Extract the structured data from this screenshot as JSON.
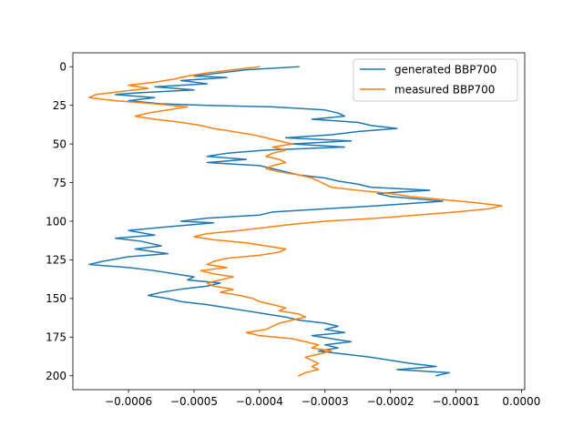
{
  "chart_data": {
    "type": "line",
    "title": "",
    "xlabel": "",
    "ylabel": "",
    "xlim": [
      -0.000685,
      5e-06
    ],
    "ylim": [
      209,
      -9
    ],
    "y_inverted": true,
    "grid": false,
    "legend_position": "top-right",
    "x_ticks": [
      -0.0006,
      -0.0005,
      -0.0004,
      -0.0003,
      -0.0002,
      -0.0001,
      0.0
    ],
    "x_tick_labels": [
      "−0.0006",
      "−0.0005",
      "−0.0004",
      "−0.0003",
      "−0.0002",
      "−0.0001",
      "0.0000"
    ],
    "y_ticks": [
      0,
      25,
      50,
      75,
      100,
      125,
      150,
      175,
      200
    ],
    "y_tick_labels": [
      "0",
      "25",
      "50",
      "75",
      "100",
      "125",
      "150",
      "175",
      "200"
    ],
    "series": [
      {
        "name": "generated BBP700",
        "color": "#1f77b4",
        "points": [
          [
            -0.00034,
            0
          ],
          [
            -0.00042,
            2
          ],
          [
            -0.00046,
            4
          ],
          [
            -0.0005,
            6
          ],
          [
            -0.00045,
            7
          ],
          [
            -0.00052,
            9
          ],
          [
            -0.00048,
            11
          ],
          [
            -0.00056,
            13
          ],
          [
            -0.0005,
            15
          ],
          [
            -0.00059,
            17
          ],
          [
            -0.00062,
            18
          ],
          [
            -0.00056,
            20
          ],
          [
            -0.0006,
            22
          ],
          [
            -0.00055,
            24
          ],
          [
            -0.00048,
            25
          ],
          [
            -0.00038,
            26
          ],
          [
            -0.0003,
            28
          ],
          [
            -0.00028,
            30
          ],
          [
            -0.00027,
            32
          ],
          [
            -0.00032,
            34
          ],
          [
            -0.00025,
            36
          ],
          [
            -0.00023,
            38
          ],
          [
            -0.00019,
            40
          ],
          [
            -0.00025,
            42
          ],
          [
            -0.00029,
            44
          ],
          [
            -0.00036,
            46
          ],
          [
            -0.00026,
            48
          ],
          [
            -0.00035,
            50
          ],
          [
            -0.00027,
            52
          ],
          [
            -0.00039,
            54
          ],
          [
            -0.00045,
            56
          ],
          [
            -0.00048,
            58
          ],
          [
            -0.00042,
            60
          ],
          [
            -0.00048,
            62
          ],
          [
            -0.0004,
            64
          ],
          [
            -0.00038,
            66
          ],
          [
            -0.00036,
            68
          ],
          [
            -0.00034,
            70
          ],
          [
            -0.0003,
            72
          ],
          [
            -0.00028,
            74
          ],
          [
            -0.00025,
            76
          ],
          [
            -0.00023,
            78
          ],
          [
            -0.00014,
            80
          ],
          [
            -0.00022,
            82
          ],
          [
            -0.0002,
            84
          ],
          [
            -0.00012,
            87
          ],
          [
            -0.00022,
            90
          ],
          [
            -0.0003,
            92
          ],
          [
            -0.00038,
            94
          ],
          [
            -0.0004,
            96
          ],
          [
            -0.00048,
            98
          ],
          [
            -0.00052,
            100
          ],
          [
            -0.00047,
            101
          ],
          [
            -0.00055,
            104
          ],
          [
            -0.0006,
            106
          ],
          [
            -0.00056,
            109
          ],
          [
            -0.00062,
            111
          ],
          [
            -0.00058,
            113
          ],
          [
            -0.00055,
            116
          ],
          [
            -0.00059,
            118
          ],
          [
            -0.00054,
            121
          ],
          [
            -0.0006,
            123
          ],
          [
            -0.00064,
            126
          ],
          [
            -0.00066,
            128
          ],
          [
            -0.0006,
            130
          ],
          [
            -0.00056,
            132
          ],
          [
            -0.00053,
            134
          ],
          [
            -0.0005,
            136
          ],
          [
            -0.00051,
            138
          ],
          [
            -0.00046,
            140
          ],
          [
            -0.00048,
            142
          ],
          [
            -0.00052,
            144
          ],
          [
            -0.00055,
            146
          ],
          [
            -0.00057,
            148
          ],
          [
            -0.00054,
            150
          ],
          [
            -0.00052,
            152
          ],
          [
            -0.00048,
            154
          ],
          [
            -0.00045,
            156
          ],
          [
            -0.00042,
            158
          ],
          [
            -0.00039,
            160
          ],
          [
            -0.00036,
            162
          ],
          [
            -0.00034,
            164
          ],
          [
            -0.0003,
            166
          ],
          [
            -0.00028,
            168
          ],
          [
            -0.0003,
            170
          ],
          [
            -0.00027,
            172
          ],
          [
            -0.00032,
            174
          ],
          [
            -0.00029,
            176
          ],
          [
            -0.00026,
            178
          ],
          [
            -0.0003,
            180
          ],
          [
            -0.00028,
            182
          ],
          [
            -0.00031,
            184
          ],
          [
            -0.00027,
            186
          ],
          [
            -0.00023,
            188
          ],
          [
            -0.0002,
            190
          ],
          [
            -0.00017,
            192
          ],
          [
            -0.00013,
            194
          ],
          [
            -0.00019,
            196
          ],
          [
            -0.00011,
            198
          ],
          [
            -0.00013,
            200
          ]
        ]
      },
      {
        "name": "measured BBP700",
        "color": "#ff7f0e",
        "points": [
          [
            -0.0004,
            0
          ],
          [
            -0.00044,
            2
          ],
          [
            -0.00048,
            4
          ],
          [
            -0.00051,
            6
          ],
          [
            -0.00053,
            8
          ],
          [
            -0.00056,
            10
          ],
          [
            -0.0006,
            12
          ],
          [
            -0.00057,
            14
          ],
          [
            -0.00061,
            16
          ],
          [
            -0.00065,
            18
          ],
          [
            -0.00066,
            20
          ],
          [
            -0.00062,
            22
          ],
          [
            -0.00056,
            24
          ],
          [
            -0.00051,
            26
          ],
          [
            -0.00054,
            28
          ],
          [
            -0.00057,
            30
          ],
          [
            -0.00059,
            32
          ],
          [
            -0.00056,
            34
          ],
          [
            -0.00052,
            36
          ],
          [
            -0.00049,
            38
          ],
          [
            -0.00047,
            40
          ],
          [
            -0.00044,
            42
          ],
          [
            -0.00041,
            44
          ],
          [
            -0.00039,
            46
          ],
          [
            -0.00037,
            48
          ],
          [
            -0.00035,
            50
          ],
          [
            -0.00038,
            52
          ],
          [
            -0.00036,
            54
          ],
          [
            -0.00038,
            56
          ],
          [
            -0.00039,
            58
          ],
          [
            -0.00037,
            60
          ],
          [
            -0.00036,
            62
          ],
          [
            -0.00038,
            64
          ],
          [
            -0.00039,
            66
          ],
          [
            -0.00037,
            68
          ],
          [
            -0.00034,
            70
          ],
          [
            -0.00032,
            72
          ],
          [
            -0.00031,
            74
          ],
          [
            -0.0003,
            76
          ],
          [
            -0.00029,
            78
          ],
          [
            -0.00025,
            80
          ],
          [
            -0.0002,
            82
          ],
          [
            -0.00017,
            84
          ],
          [
            -0.00012,
            86
          ],
          [
            -7e-05,
            88
          ],
          [
            -3e-05,
            90
          ],
          [
            -5e-05,
            92
          ],
          [
            -0.0001,
            94
          ],
          [
            -0.00016,
            96
          ],
          [
            -0.00022,
            98
          ],
          [
            -0.0003,
            100
          ],
          [
            -0.00035,
            102
          ],
          [
            -0.00039,
            104
          ],
          [
            -0.00043,
            106
          ],
          [
            -0.00048,
            108
          ],
          [
            -0.0005,
            110
          ],
          [
            -0.00047,
            112
          ],
          [
            -0.00042,
            114
          ],
          [
            -0.00039,
            116
          ],
          [
            -0.00036,
            118
          ],
          [
            -0.00037,
            120
          ],
          [
            -0.0004,
            122
          ],
          [
            -0.00045,
            124
          ],
          [
            -0.00047,
            126
          ],
          [
            -0.00048,
            128
          ],
          [
            -0.00045,
            130
          ],
          [
            -0.00049,
            132
          ],
          [
            -0.00047,
            134
          ],
          [
            -0.00044,
            136
          ],
          [
            -0.00046,
            138
          ],
          [
            -0.00048,
            140
          ],
          [
            -0.00047,
            142
          ],
          [
            -0.00044,
            144
          ],
          [
            -0.00046,
            146
          ],
          [
            -0.00043,
            148
          ],
          [
            -0.00041,
            150
          ],
          [
            -0.0004,
            152
          ],
          [
            -0.00038,
            154
          ],
          [
            -0.00036,
            156
          ],
          [
            -0.00037,
            158
          ],
          [
            -0.00034,
            160
          ],
          [
            -0.00033,
            162
          ],
          [
            -0.00035,
            164
          ],
          [
            -0.00037,
            166
          ],
          [
            -0.00038,
            168
          ],
          [
            -0.00039,
            170
          ],
          [
            -0.00042,
            172
          ],
          [
            -0.0004,
            174
          ],
          [
            -0.00035,
            176
          ],
          [
            -0.00033,
            178
          ],
          [
            -0.00031,
            180
          ],
          [
            -0.00032,
            182
          ],
          [
            -0.00029,
            184
          ],
          [
            -0.00031,
            186
          ],
          [
            -0.00033,
            188
          ],
          [
            -0.00032,
            190
          ],
          [
            -0.00031,
            192
          ],
          [
            -0.00032,
            194
          ],
          [
            -0.00031,
            196
          ],
          [
            -0.00033,
            198
          ],
          [
            -0.00034,
            200
          ]
        ]
      }
    ]
  }
}
